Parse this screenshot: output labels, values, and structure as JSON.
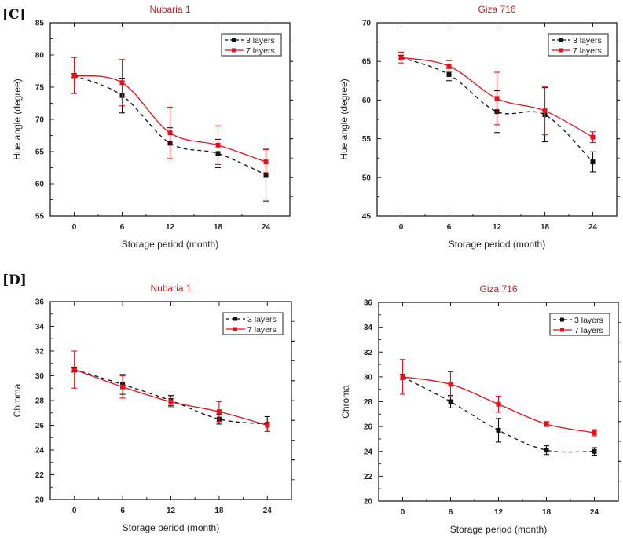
{
  "figure_labels": [
    "[C]",
    "[D]"
  ],
  "colors": {
    "series_3_layers": "#111111",
    "series_7_layers": "#e8101a",
    "title": "#c8202a"
  },
  "chart_data": [
    {
      "type": "line",
      "panel_label": "[C]",
      "title": "Nubaria 1",
      "xlabel": "Storage period (month)",
      "ylabel": "Hue angle (degree)",
      "x": [
        0,
        6,
        12,
        18,
        24
      ],
      "xticks": [
        0,
        6,
        12,
        18,
        24
      ],
      "xlim": [
        -3,
        27
      ],
      "ylim": [
        55,
        85
      ],
      "yticks": [
        55,
        60,
        65,
        70,
        75,
        80,
        85
      ],
      "legend": "top-right",
      "series": [
        {
          "name": "3 layers",
          "style": "dashed",
          "values": [
            76.8,
            73.7,
            66.3,
            64.7,
            61.4
          ],
          "errors": [
            0.3,
            2.7,
            2.4,
            2.2,
            4.1
          ]
        },
        {
          "name": "7 layers",
          "style": "solid",
          "values": [
            76.8,
            75.7,
            67.9,
            66.0,
            63.4
          ],
          "errors": [
            2.8,
            3.6,
            4.0,
            3.0,
            1.9
          ]
        }
      ]
    },
    {
      "type": "line",
      "title": "Giza 716",
      "xlabel": "Storage period (month)",
      "ylabel": "Hue angle (degree)",
      "x": [
        0,
        6,
        12,
        18,
        24
      ],
      "xticks": [
        0,
        6,
        12,
        18,
        24
      ],
      "xlim": [
        -3,
        27
      ],
      "ylim": [
        45,
        70
      ],
      "yticks": [
        45,
        50,
        55,
        60,
        65,
        70
      ],
      "legend": "top-right",
      "series": [
        {
          "name": "3 layers",
          "style": "dashed",
          "values": [
            65.5,
            63.3,
            58.5,
            58.1,
            52.0
          ],
          "errors": [
            0.3,
            0.8,
            2.7,
            3.5,
            1.3
          ]
        },
        {
          "name": "7 layers",
          "style": "solid",
          "values": [
            65.5,
            64.4,
            60.2,
            58.6,
            55.2
          ],
          "errors": [
            0.7,
            0.7,
            3.4,
            3.1,
            0.7
          ]
        }
      ]
    },
    {
      "type": "line",
      "panel_label": "[D]",
      "title": "Nubaria 1",
      "xlabel": "Storage period (month)",
      "ylabel": "Chroma",
      "x": [
        0,
        6,
        12,
        18,
        24
      ],
      "xticks": [
        0,
        6,
        12,
        18,
        24
      ],
      "xlim": [
        -3,
        27
      ],
      "ylim": [
        20,
        36
      ],
      "yticks": [
        20,
        22,
        24,
        26,
        28,
        30,
        32,
        34,
        36
      ],
      "legend": "top-right",
      "series": [
        {
          "name": "3 layers",
          "style": "dashed",
          "values": [
            30.5,
            29.3,
            28.0,
            26.5,
            26.1
          ],
          "errors": [
            0.2,
            0.8,
            0.4,
            0.4,
            0.6
          ]
        },
        {
          "name": "7 layers",
          "style": "solid",
          "values": [
            30.5,
            29.1,
            27.9,
            27.1,
            26.0
          ],
          "errors": [
            1.5,
            0.9,
            0.4,
            0.8,
            0.5
          ]
        }
      ]
    },
    {
      "type": "line",
      "title": "Giza 716",
      "xlabel": "Storage period (month)",
      "ylabel": "Chroma",
      "x": [
        0,
        6,
        12,
        18,
        24
      ],
      "xticks": [
        0,
        6,
        12,
        18,
        24
      ],
      "xlim": [
        -3,
        27
      ],
      "ylim": [
        20,
        36
      ],
      "yticks": [
        20,
        22,
        24,
        26,
        28,
        30,
        32,
        34,
        36
      ],
      "legend": "top-right",
      "series": [
        {
          "name": "3 layers",
          "style": "dashed",
          "values": [
            30.0,
            28.0,
            25.7,
            24.1,
            24.0
          ],
          "errors": [
            0.2,
            0.5,
            0.95,
            0.35,
            0.3
          ]
        },
        {
          "name": "7 layers",
          "style": "solid",
          "values": [
            30.0,
            29.4,
            27.8,
            26.2,
            25.5
          ],
          "errors": [
            1.4,
            1.0,
            0.65,
            0.2,
            0.25
          ]
        }
      ]
    }
  ]
}
